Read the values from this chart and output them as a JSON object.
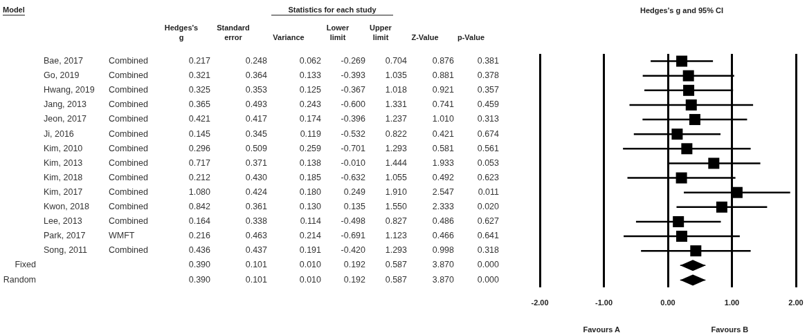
{
  "chart_data": [
    {
      "type": "other",
      "title": "Statistics for each study",
      "annotations": [
        "Model"
      ],
      "categories": [
        null,
        null,
        "Hedges's\ng",
        "Standard\nerror",
        "Variance",
        "Lower\nlimit",
        "Upper\nlimit",
        "Z-Value",
        "p-Value"
      ],
      "cell_labels": [
        [
          "Bae, 2017",
          "Combined",
          "0.217",
          "0.248",
          "0.062",
          "-0.269",
          "0.704",
          "0.876",
          "0.381"
        ],
        [
          "Go, 2019",
          "Combined",
          "0.321",
          "0.364",
          "0.133",
          "-0.393",
          "1.035",
          "0.881",
          "0.378"
        ],
        [
          "Hwang, 2019",
          "Combined",
          "0.325",
          "0.353",
          "0.125",
          "-0.367",
          "1.018",
          "0.921",
          "0.357"
        ],
        [
          "Jang, 2013",
          "Combined",
          "0.365",
          "0.493",
          "0.243",
          "-0.600",
          "1.331",
          "0.741",
          "0.459"
        ],
        [
          "Jeon, 2017",
          "Combined",
          "0.421",
          "0.417",
          "0.174",
          "-0.396",
          "1.237",
          "1.010",
          "0.313"
        ],
        [
          "Ji, 2016",
          "Combined",
          "0.145",
          "0.345",
          "0.119",
          "-0.532",
          "0.822",
          "0.421",
          "0.674"
        ],
        [
          "Kim, 2010",
          "Combined",
          "0.296",
          "0.509",
          "0.259",
          "-0.701",
          "1.293",
          "0.581",
          "0.561"
        ],
        [
          "Kim, 2013",
          "Combined",
          "0.717",
          "0.371",
          "0.138",
          "-0.010",
          "1.444",
          "1.933",
          "0.053"
        ],
        [
          "Kim, 2018",
          "Combined",
          "0.212",
          "0.430",
          "0.185",
          "-0.632",
          "1.055",
          "0.492",
          "0.623"
        ],
        [
          "Kim, 2017",
          "Combined",
          "1.080",
          "0.424",
          "0.180",
          "0.249",
          "1.910",
          "2.547",
          "0.011"
        ],
        [
          "Kwon, 2018",
          "Combined",
          "0.842",
          "0.361",
          "0.130",
          "0.135",
          "1.550",
          "2.333",
          "0.020"
        ],
        [
          "Lee, 2013",
          "Combined",
          "0.164",
          "0.338",
          "0.114",
          "-0.498",
          "0.827",
          "0.486",
          "0.627"
        ],
        [
          "Park, 2017",
          "WMFT",
          "0.216",
          "0.463",
          "0.214",
          "-0.691",
          "1.123",
          "0.466",
          "0.641"
        ],
        [
          "Song, 2011",
          "Combined",
          "0.436",
          "0.437",
          "0.191",
          "-0.420",
          "1.293",
          "0.998",
          "0.318"
        ],
        [
          "Fixed",
          null,
          "0.390",
          "0.101",
          "0.010",
          "0.192",
          "0.587",
          "3.870",
          "0.000"
        ],
        [
          "Random",
          null,
          "0.390",
          "0.101",
          "0.010",
          "0.192",
          "0.587",
          "3.870",
          "0.000"
        ]
      ]
    },
    {
      "type": "scatter",
      "title": "Hedges's g and 95% CI",
      "orientation": "horizontal",
      "tick_labels": "x",
      "grid": "x",
      "categories": [
        null,
        null,
        null,
        null,
        null,
        null,
        null,
        null,
        null,
        null,
        null,
        null,
        null,
        null,
        null,
        null
      ],
      "xlim": [
        -2,
        2
      ],
      "xticks": [
        {
          "value": -2,
          "label": "-2.00"
        },
        {
          "value": -1,
          "label": "-1.00"
        },
        {
          "value": 0,
          "label": "0.00"
        },
        {
          "value": 1,
          "label": "1.00"
        },
        {
          "value": 2,
          "label": "2.00"
        }
      ],
      "annotations": [
        "Favours A",
        "Favours B"
      ],
      "series": [
        {
          "color": "#000000",
          "marker": "square",
          "values": [
            0.217,
            0.321,
            0.325,
            0.365,
            0.421,
            0.145,
            0.296,
            0.717,
            0.212,
            1.08,
            0.842,
            0.164,
            0.216,
            0.436,
            null,
            null
          ],
          "errors": [
            [
              -0.269,
              0.704
            ],
            [
              -0.393,
              1.035
            ],
            [
              -0.367,
              1.018
            ],
            [
              -0.6,
              1.331
            ],
            [
              -0.396,
              1.237
            ],
            [
              -0.532,
              0.822
            ],
            [
              -0.701,
              1.293
            ],
            [
              -0.01,
              1.444
            ],
            [
              -0.632,
              1.055
            ],
            [
              0.249,
              1.91
            ],
            [
              0.135,
              1.55
            ],
            [
              -0.498,
              0.827
            ],
            [
              -0.691,
              1.123
            ],
            [
              -0.42,
              1.293
            ],
            null,
            null
          ]
        },
        {
          "color": "#000000",
          "marker": "diamond",
          "values": [
            null,
            null,
            null,
            null,
            null,
            null,
            null,
            null,
            null,
            null,
            null,
            null,
            null,
            null,
            0.39,
            0.39
          ],
          "errors": [
            null,
            null,
            null,
            null,
            null,
            null,
            null,
            null,
            null,
            null,
            null,
            null,
            null,
            null,
            [
              0.192,
              0.587
            ],
            [
              0.192,
              0.587
            ]
          ]
        }
      ]
    }
  ]
}
